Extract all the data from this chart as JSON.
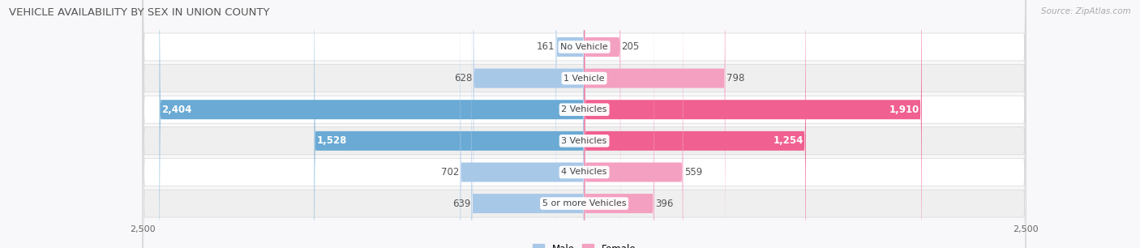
{
  "title": "VEHICLE AVAILABILITY BY SEX IN UNION COUNTY",
  "source": "Source: ZipAtlas.com",
  "categories": [
    "No Vehicle",
    "1 Vehicle",
    "2 Vehicles",
    "3 Vehicles",
    "4 Vehicles",
    "5 or more Vehicles"
  ],
  "male_values": [
    161,
    628,
    2404,
    1528,
    702,
    639
  ],
  "female_values": [
    205,
    798,
    1910,
    1254,
    559,
    396
  ],
  "male_color_light": "#a8c8e8",
  "male_color_dark": "#6aaad4",
  "female_color_light": "#f4a0c0",
  "female_color_dark": "#f06090",
  "male_threshold": 1000,
  "female_threshold": 1000,
  "max_axis": 2500,
  "bar_height": 0.62,
  "label_fontsize": 8.5,
  "title_fontsize": 9.5,
  "axis_label_fontsize": 8,
  "category_fontsize": 8,
  "background_color": "#f8f8fa",
  "row_colors": [
    "#ffffff",
    "#efefef",
    "#ffffff",
    "#efefef",
    "#ffffff",
    "#efefef"
  ]
}
